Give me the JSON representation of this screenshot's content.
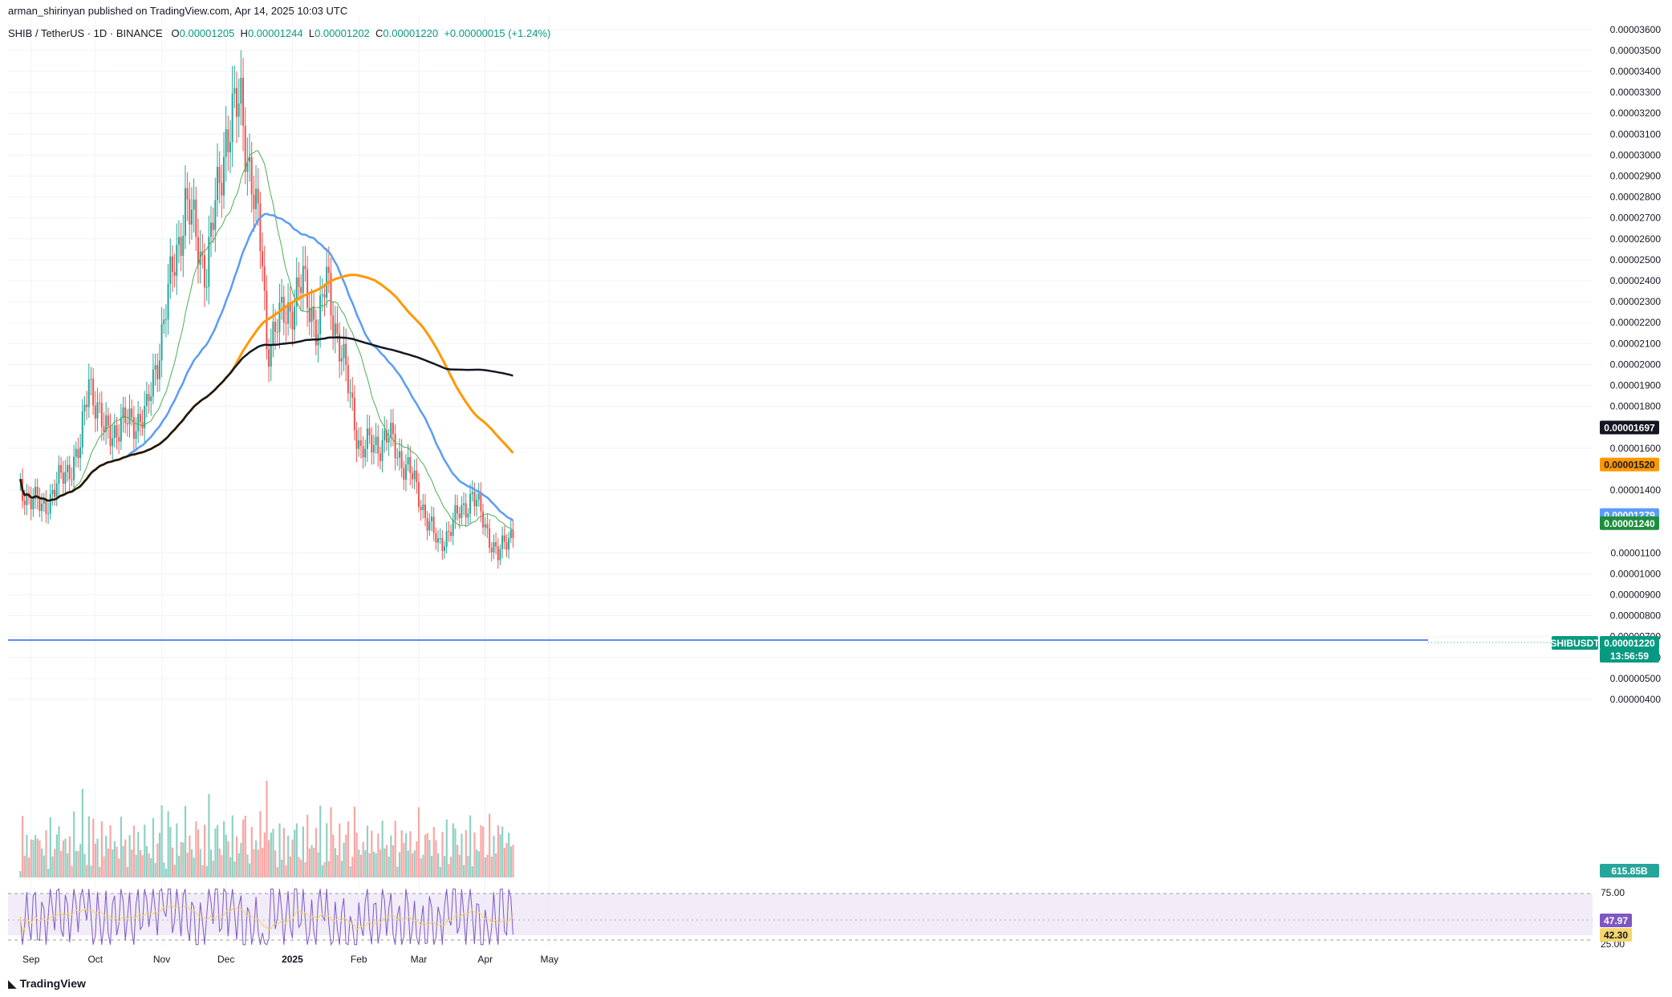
{
  "header": {
    "publisher": "arman_shirinyan published on TradingView.com, Apr 14, 2025 10:03 UTC",
    "symbol": "SHIB / TetherUS · 1D · BINANCE",
    "open_label": "O",
    "open": "0.00001205",
    "high_label": "H",
    "high": "0.00001244",
    "low_label": "L",
    "low": "0.00001202",
    "close_label": "C",
    "close": "0.00001220",
    "change": "+0.00000015 (+1.24%)"
  },
  "footer": {
    "logo_text": "TradingView"
  },
  "colors": {
    "up": "#26a69a",
    "down": "#ef5350",
    "vol_up": "#8fd1c5",
    "vol_down": "#f7a7a5",
    "ma_fast": "#4caf50",
    "ma_blue": "#5b9cf6",
    "ma_orange": "#ff9800",
    "ma_black": "#131722",
    "price_line": "#2962ff",
    "rsi_line": "#7e57c2",
    "rsi_ma": "#f5d76e",
    "rsi_band": "#ede7f6"
  },
  "chart_data": {
    "type": "candlestick",
    "price_axis": {
      "ticks": [
        "0.00003600",
        "0.00003500",
        "0.00003400",
        "0.00003300",
        "0.00003200",
        "0.00003100",
        "0.00003000",
        "0.00002900",
        "0.00002800",
        "0.00002700",
        "0.00002600",
        "0.00002500",
        "0.00002400",
        "0.00002300",
        "0.00002200",
        "0.00002100",
        "0.00002000",
        "0.00001900",
        "0.00001800",
        "0.00001600",
        "0.00001400",
        "0.00001100",
        "0.00001000",
        "0.00000900",
        "0.00000800",
        "0.00000700",
        "0.00000600",
        "0.00000500",
        "0.00000400"
      ],
      "range": [
        3.9e-06,
        3.62e-05
      ]
    },
    "time_axis": {
      "labels": [
        "Sep",
        "Oct",
        "Nov",
        "Dec",
        "2025",
        "Feb",
        "Mar",
        "Apr",
        "May"
      ]
    },
    "moving_averages": [
      {
        "color": "black",
        "last": "0.00001697"
      },
      {
        "color": "orange",
        "last": "0.00001520"
      },
      {
        "color": "blue",
        "last": "0.00001279"
      },
      {
        "color": "green",
        "last": "0.00001240"
      }
    ],
    "last_price": {
      "symbol": "SHIBUSDT",
      "value": "0.00001220",
      "countdown": "13:56:59"
    },
    "volume": {
      "last": "615.85B"
    },
    "rsi": {
      "ticks": [
        "75.00",
        "25.00"
      ],
      "value": "47.97",
      "ma": "42.30"
    },
    "key_points": [
      {
        "date": "2024-08-27",
        "close": 1.41e-05
      },
      {
        "date": "2024-09-06",
        "close": 1.31e-05
      },
      {
        "date": "2024-09-24",
        "close": 1.59e-05
      },
      {
        "date": "2024-09-28",
        "close": 1.95e-05
      },
      {
        "date": "2024-10-05",
        "close": 1.67e-05
      },
      {
        "date": "2024-10-25",
        "close": 1.76e-05
      },
      {
        "date": "2024-11-12",
        "close": 2.77e-05
      },
      {
        "date": "2024-11-22",
        "close": 2.45e-05
      },
      {
        "date": "2024-12-01",
        "close": 3.1e-05
      },
      {
        "date": "2024-12-08",
        "close": 3.25e-05
      },
      {
        "date": "2024-12-18",
        "close": 2.49e-05
      },
      {
        "date": "2024-12-20",
        "close": 2.1e-05
      },
      {
        "date": "2025-01-06",
        "close": 2.38e-05
      },
      {
        "date": "2025-01-13",
        "close": 2.17e-05
      },
      {
        "date": "2025-01-17",
        "close": 2.4e-05
      },
      {
        "date": "2025-01-26",
        "close": 1.94e-05
      },
      {
        "date": "2025-02-02",
        "close": 1.59e-05
      },
      {
        "date": "2025-02-15",
        "close": 1.65e-05
      },
      {
        "date": "2025-02-25",
        "close": 1.48e-05
      },
      {
        "date": "2025-03-10",
        "close": 1.13e-05
      },
      {
        "date": "2025-03-26",
        "close": 1.38e-05
      },
      {
        "date": "2025-04-07",
        "close": 1.08e-05
      },
      {
        "date": "2025-04-14",
        "close": 1.22e-05
      }
    ]
  }
}
